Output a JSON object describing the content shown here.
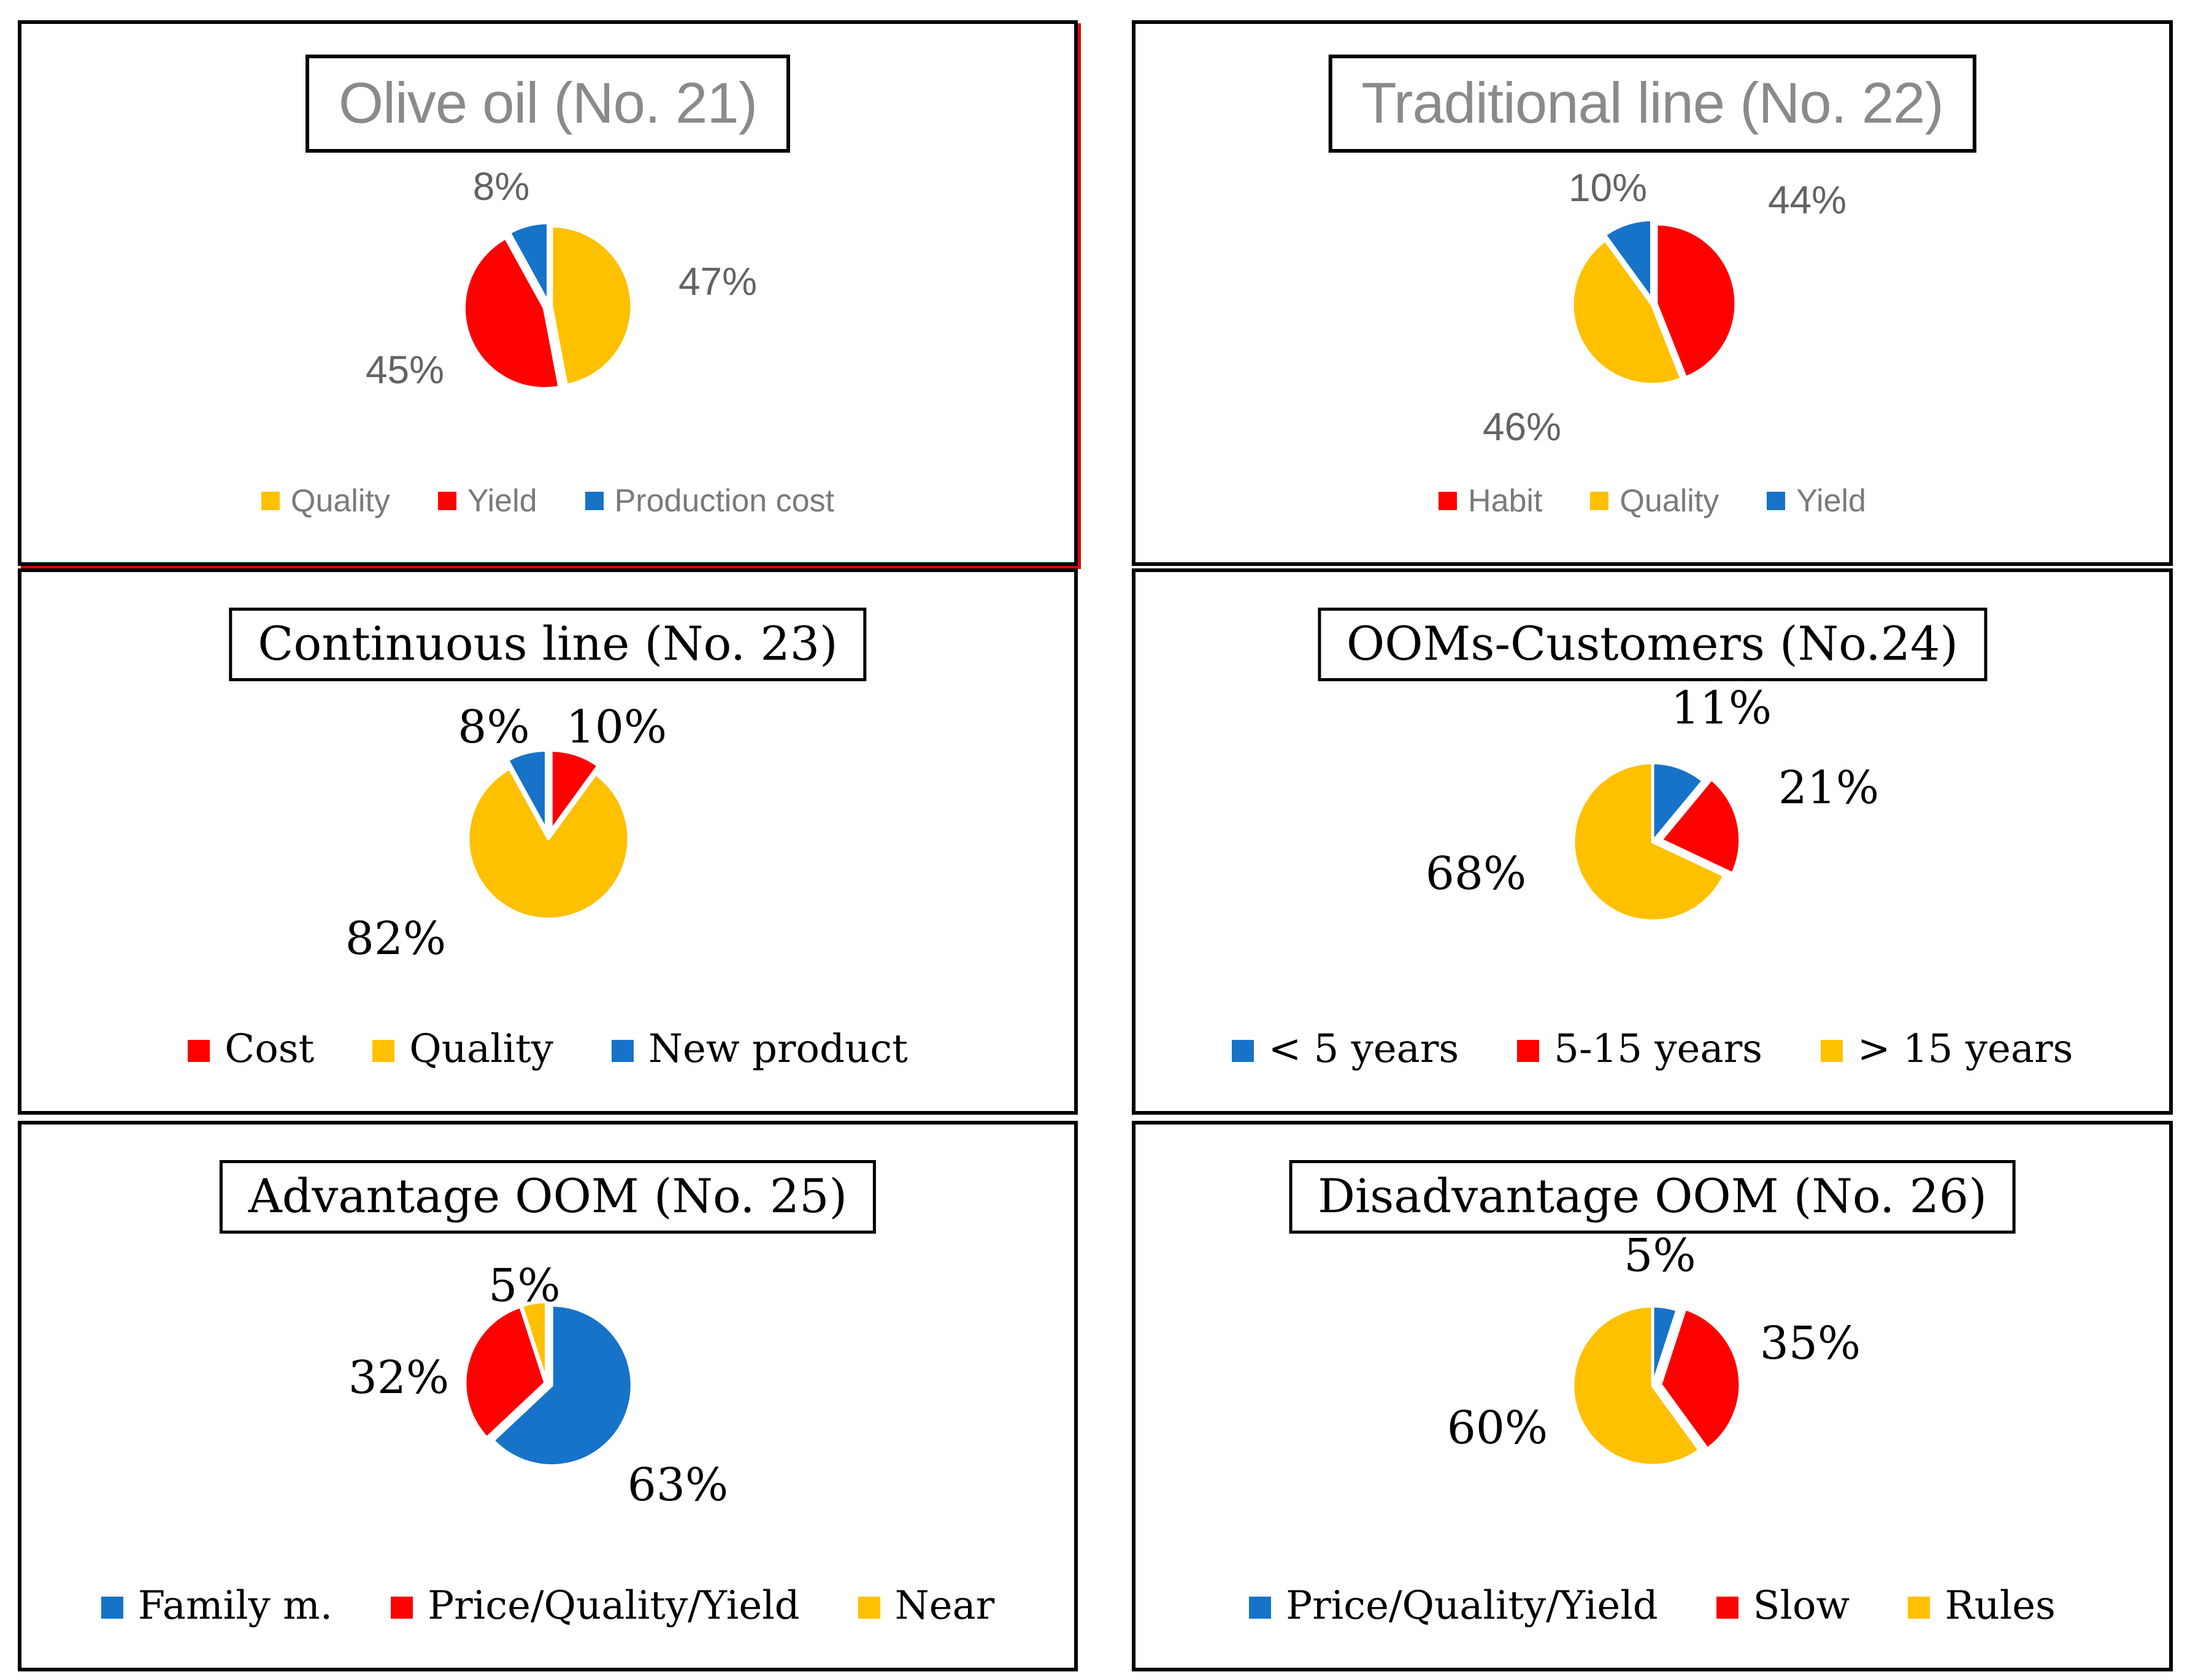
{
  "page": {
    "background": "#FFFFFF",
    "panel_border_color": "#000000",
    "highlighted_panel": "Olive oil (No. 21)",
    "highlight_border_color": "#E60000"
  },
  "chart_data": [
    {
      "type": "pie",
      "title": "Olive oil (No. 21)",
      "categories": [
        "Quality",
        "Yield",
        "Production cost"
      ],
      "values": [
        47,
        45,
        8
      ],
      "colors": [
        "#FFC000",
        "#FF0000",
        "#1673C8"
      ],
      "pct_labels": [
        "47%",
        "45%",
        "8%"
      ],
      "start_angle_deg": 0,
      "direction": "clockwise",
      "legend_position": "bottom",
      "title_color": "#8A8A8A",
      "text_color": "#636363"
    },
    {
      "type": "pie",
      "title": "Traditional line (No. 22)",
      "categories": [
        "Habit",
        "Quality",
        "Yield"
      ],
      "values": [
        44,
        46,
        10
      ],
      "colors": [
        "#FF0000",
        "#FFC000",
        "#1673C8"
      ],
      "pct_labels": [
        "44%",
        "46%",
        "10%"
      ],
      "start_angle_deg": 0,
      "direction": "clockwise",
      "legend_position": "bottom",
      "title_color": "#8A8A8A",
      "text_color": "#636363"
    },
    {
      "type": "pie",
      "title": "Continuous line (No. 23)",
      "categories": [
        "Cost",
        "Quality",
        "New product"
      ],
      "values": [
        10,
        82,
        8
      ],
      "colors": [
        "#FF0000",
        "#FFC000",
        "#1673C8"
      ],
      "pct_labels": [
        "10%",
        "82%",
        "8%"
      ],
      "start_angle_deg": 0,
      "direction": "clockwise",
      "legend_position": "bottom",
      "title_color": "#000000",
      "text_color": "#000000"
    },
    {
      "type": "pie",
      "title": "OOMs-Customers (No.24)",
      "categories": [
        "< 5 years",
        "5-15 years",
        "> 15 years"
      ],
      "values": [
        11,
        21,
        68
      ],
      "colors": [
        "#1673C8",
        "#FF0000",
        "#FFC000"
      ],
      "pct_labels": [
        "11%",
        "21%",
        "68%"
      ],
      "start_angle_deg": 0,
      "direction": "clockwise",
      "legend_position": "bottom",
      "title_color": "#000000",
      "text_color": "#000000"
    },
    {
      "type": "pie",
      "title": "Advantage OOM (No. 25)",
      "categories": [
        "Family m.",
        "Price/Quality/Yield",
        "Near"
      ],
      "values": [
        63,
        32,
        5
      ],
      "colors": [
        "#1673C8",
        "#FF0000",
        "#FFC000"
      ],
      "pct_labels": [
        "63%",
        "32%",
        "5%"
      ],
      "start_angle_deg": 0,
      "direction": "clockwise",
      "legend_position": "bottom",
      "title_color": "#000000",
      "text_color": "#000000"
    },
    {
      "type": "pie",
      "title": "Disadvantage OOM (No. 26)",
      "categories": [
        "Price/Quality/Yield",
        "Slow",
        "Rules"
      ],
      "values": [
        5,
        35,
        60
      ],
      "colors": [
        "#1673C8",
        "#FF0000",
        "#FFC000"
      ],
      "pct_labels": [
        "5%",
        "35%",
        "60%"
      ],
      "start_angle_deg": 0,
      "direction": "clockwise",
      "legend_position": "bottom",
      "title_color": "#000000",
      "text_color": "#000000"
    }
  ]
}
